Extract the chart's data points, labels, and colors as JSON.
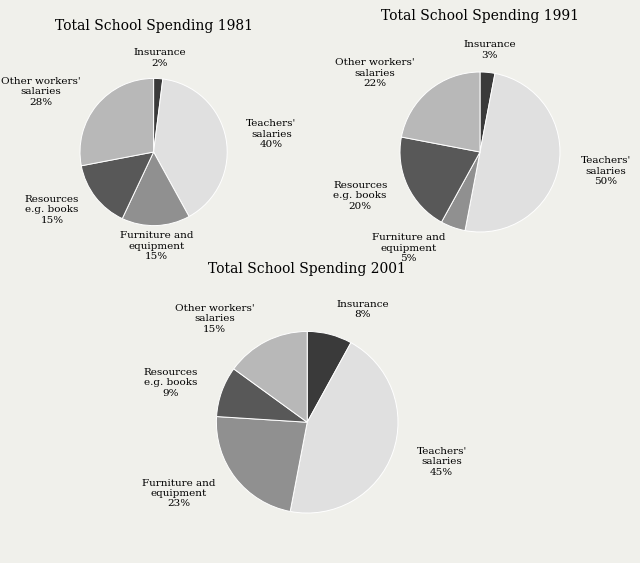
{
  "charts": [
    {
      "title": "Total School Spending 1981",
      "labels": [
        "Insurance",
        "Teachers'\nsalaries",
        "Furniture and\nequipment",
        "Resources\ne.g. books",
        "Other workers'\nsalaries"
      ],
      "values": [
        2,
        40,
        15,
        15,
        28
      ],
      "colors": [
        "#3a3a3a",
        "#e0e0e0",
        "#909090",
        "#585858",
        "#b8b8b8"
      ],
      "startangle": 90
    },
    {
      "title": "Total School Spending 1991",
      "labels": [
        "Insurance",
        "Teachers'\nsalaries",
        "Furniture and\nequipment",
        "Resources\ne.g. books",
        "Other workers'\nsalaries"
      ],
      "values": [
        3,
        50,
        5,
        20,
        22
      ],
      "colors": [
        "#3a3a3a",
        "#e0e0e0",
        "#909090",
        "#585858",
        "#b8b8b8"
      ],
      "startangle": 90
    },
    {
      "title": "Total School Spending 2001",
      "labels": [
        "Insurance",
        "Teachers'\nsalaries",
        "Furniture and\nequipment",
        "Resources\ne.g. books",
        "Other workers'\nsalaries"
      ],
      "values": [
        8,
        45,
        23,
        9,
        15
      ],
      "colors": [
        "#3a3a3a",
        "#e0e0e0",
        "#909090",
        "#585858",
        "#b8b8b8"
      ],
      "startangle": 90
    }
  ],
  "bg_color": "#f0f0eb",
  "title_fontsize": 10,
  "label_fontsize": 7.5
}
